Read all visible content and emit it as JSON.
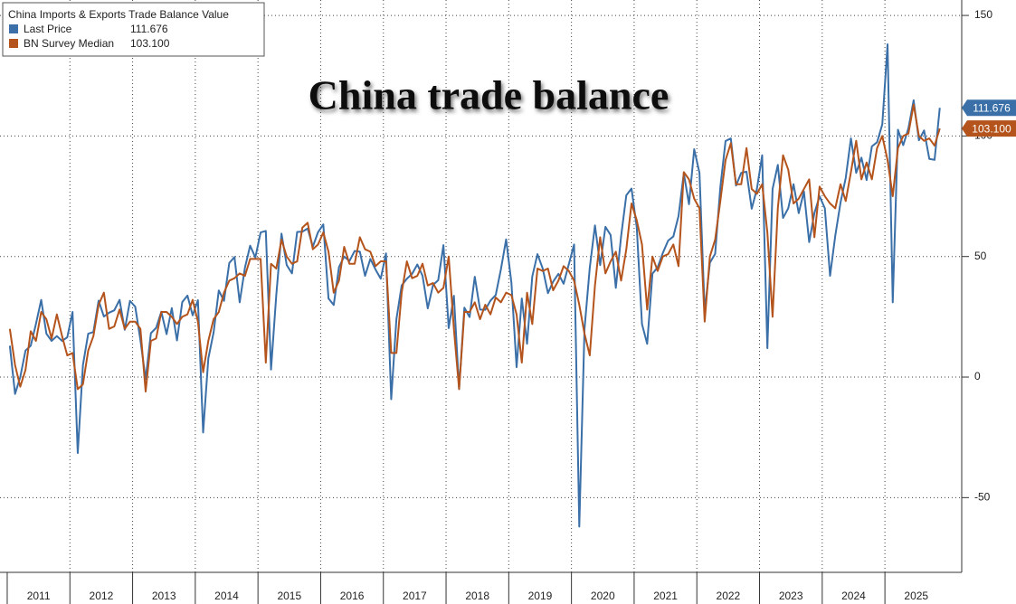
{
  "chart_data": {
    "type": "line",
    "title": "China trade balance",
    "legend_title": "China Imports & Exports Trade Balance Value",
    "grid": true,
    "legend": "upper left",
    "xlim": [
      2010.885,
      2026.225
    ],
    "ylim": [
      -81,
      156.4
    ],
    "yticks": [
      150,
      100,
      50,
      0,
      -50
    ],
    "xticks": [
      {
        "value": 2011,
        "label": "2011"
      },
      {
        "value": 2012,
        "label": "2012"
      },
      {
        "value": 2013,
        "label": "2013"
      },
      {
        "value": 2014,
        "label": "2014"
      },
      {
        "value": 2015,
        "label": "2015"
      },
      {
        "value": 2016,
        "label": "2016"
      },
      {
        "value": 2017,
        "label": "2017"
      },
      {
        "value": 2018,
        "label": "2018"
      },
      {
        "value": 2019,
        "label": "2019"
      },
      {
        "value": 2020,
        "label": "2020"
      },
      {
        "value": 2021,
        "label": "2021"
      },
      {
        "value": 2022,
        "label": "2022"
      },
      {
        "value": 2023,
        "label": "2023"
      },
      {
        "value": 2024,
        "label": "2024"
      },
      {
        "value": 2025,
        "label": "2025"
      }
    ],
    "x": [
      2011.042,
      2011.125,
      2011.208,
      2011.292,
      2011.375,
      2011.458,
      2011.542,
      2011.625,
      2011.708,
      2011.792,
      2011.875,
      2011.958,
      2012.042,
      2012.125,
      2012.208,
      2012.292,
      2012.375,
      2012.458,
      2012.542,
      2012.625,
      2012.708,
      2012.792,
      2012.875,
      2012.958,
      2013.042,
      2013.125,
      2013.208,
      2013.292,
      2013.375,
      2013.458,
      2013.542,
      2013.625,
      2013.708,
      2013.792,
      2013.875,
      2013.958,
      2014.042,
      2014.125,
      2014.208,
      2014.292,
      2014.375,
      2014.458,
      2014.542,
      2014.625,
      2014.708,
      2014.792,
      2014.875,
      2014.958,
      2015.042,
      2015.125,
      2015.208,
      2015.292,
      2015.375,
      2015.458,
      2015.542,
      2015.625,
      2015.708,
      2015.792,
      2015.875,
      2015.958,
      2016.042,
      2016.125,
      2016.208,
      2016.292,
      2016.375,
      2016.458,
      2016.542,
      2016.625,
      2016.708,
      2016.792,
      2016.875,
      2016.958,
      2017.042,
      2017.125,
      2017.208,
      2017.292,
      2017.375,
      2017.458,
      2017.542,
      2017.625,
      2017.708,
      2017.792,
      2017.875,
      2017.958,
      2018.042,
      2018.125,
      2018.208,
      2018.292,
      2018.375,
      2018.458,
      2018.542,
      2018.625,
      2018.708,
      2018.792,
      2018.875,
      2018.958,
      2019.042,
      2019.125,
      2019.208,
      2019.292,
      2019.375,
      2019.458,
      2019.542,
      2019.625,
      2019.708,
      2019.792,
      2019.875,
      2019.958,
      2020.042,
      2020.125,
      2020.208,
      2020.292,
      2020.375,
      2020.458,
      2020.542,
      2020.625,
      2020.708,
      2020.792,
      2020.875,
      2020.958,
      2021.042,
      2021.125,
      2021.208,
      2021.292,
      2021.375,
      2021.458,
      2021.542,
      2021.625,
      2021.708,
      2021.792,
      2021.875,
      2021.958,
      2022.042,
      2022.125,
      2022.208,
      2022.292,
      2022.375,
      2022.458,
      2022.542,
      2022.625,
      2022.708,
      2022.792,
      2022.875,
      2022.958,
      2023.042,
      2023.125,
      2023.208,
      2023.292,
      2023.375,
      2023.458,
      2023.542,
      2023.625,
      2023.708,
      2023.792,
      2023.875,
      2023.958,
      2024.042,
      2024.125,
      2024.208,
      2024.292,
      2024.375,
      2024.458,
      2024.542,
      2024.625,
      2024.708,
      2024.792,
      2024.875,
      2024.958,
      2025.042,
      2025.125,
      2025.208,
      2025.292,
      2025.375,
      2025.458,
      2025.542,
      2025.625,
      2025.708,
      2025.792,
      2025.875
    ],
    "series": [
      {
        "name": "Last Price",
        "color": "#3a6fa8",
        "last_label": "111.676",
        "values": [
          13,
          -7,
          0,
          11,
          13,
          22,
          32,
          18,
          15,
          17,
          15,
          16.5,
          27,
          -31.5,
          5,
          18,
          18.7,
          31.7,
          25.1,
          26.7,
          27.7,
          32,
          19.6,
          31.6,
          29.2,
          15.3,
          -0.9,
          18.2,
          20.4,
          27.1,
          17.8,
          28.6,
          15.2,
          31.1,
          33.8,
          25.6,
          31.9,
          -23,
          7.7,
          18.5,
          35.9,
          31.6,
          47.3,
          49.8,
          31,
          45.4,
          54.5,
          49.6,
          60,
          60.6,
          3.1,
          34.1,
          59.5,
          46.5,
          43,
          60.2,
          60.3,
          61.6,
          54.1,
          60.1,
          63.3,
          32.6,
          29.9,
          45.6,
          50,
          48.1,
          52.3,
          52,
          42,
          49,
          44.6,
          40.8,
          51.3,
          -9.2,
          24,
          38,
          40.8,
          42.8,
          46.7,
          42,
          28.5,
          38.2,
          40.2,
          54.7,
          20.3,
          33.7,
          -5,
          28.8,
          24.9,
          41.6,
          28,
          27.9,
          31.7,
          34,
          44.7,
          57.1,
          39.2,
          4.1,
          32.6,
          13.8,
          41.7,
          51,
          45,
          34.8,
          39.6,
          42.8,
          38.7,
          46.8,
          55,
          -62,
          19.9,
          45.3,
          62.9,
          46.4,
          62.3,
          58.9,
          37,
          58.4,
          75.4,
          78.2,
          62,
          22,
          13.8,
          42.9,
          45.5,
          51.5,
          56.6,
          58.3,
          66.8,
          84.5,
          71.7,
          94.5,
          84.7,
          27,
          47.4,
          51.1,
          78.8,
          97.9,
          99,
          79.4,
          84.7,
          85.2,
          69.8,
          78,
          92,
          12,
          78,
          88,
          66,
          70,
          80,
          68,
          77,
          56,
          68,
          75,
          70,
          42,
          58.6,
          72.4,
          82.6,
          99,
          84.7,
          91,
          81.7,
          95.7,
          97.4,
          104.8,
          138,
          31,
          102.6,
          96.2,
          103.2,
          114.8,
          98.2,
          102.3,
          90.5,
          90.1,
          111.676
        ]
      },
      {
        "name": "BN Survey Median",
        "color": "#b4541c",
        "last_label": "103.100",
        "values": [
          20,
          5,
          -4,
          3,
          19,
          15,
          27,
          24,
          16,
          26,
          17,
          9,
          10,
          -5,
          -3,
          11,
          17,
          30,
          35,
          20,
          21,
          28,
          20,
          23,
          23,
          20,
          -6,
          15,
          16,
          27,
          27,
          25,
          22,
          25,
          26,
          32,
          23,
          2,
          15,
          24,
          27,
          35,
          40,
          41,
          43,
          42,
          49,
          49,
          49,
          6,
          47,
          45,
          57,
          50,
          47,
          48,
          62,
          64,
          53,
          55,
          60,
          52,
          35,
          40,
          54,
          47,
          47,
          58,
          53,
          52,
          46,
          48,
          48,
          10,
          10,
          35,
          48,
          41,
          42,
          47,
          38,
          39,
          35,
          37,
          50,
          20,
          -5,
          27,
          27,
          31,
          24,
          30,
          26,
          33,
          31,
          35,
          34,
          26,
          6,
          35,
          22,
          45,
          44,
          45,
          36,
          40,
          46,
          44,
          40,
          30,
          18,
          9,
          38,
          58,
          43,
          48,
          52,
          40,
          53,
          72,
          65,
          55,
          28,
          50,
          44,
          50,
          51,
          55,
          46,
          85,
          82,
          74,
          70,
          23,
          50,
          57,
          73,
          90,
          97,
          80,
          80,
          95,
          78,
          76,
          80,
          60,
          25,
          70,
          92,
          86,
          72,
          74,
          78,
          82,
          58,
          79,
          75,
          72,
          70,
          80,
          73,
          85,
          98,
          82,
          89,
          82,
          95,
          100,
          90,
          75,
          95,
          100,
          101,
          113,
          100,
          98,
          99,
          96,
          103.1
        ]
      }
    ]
  }
}
